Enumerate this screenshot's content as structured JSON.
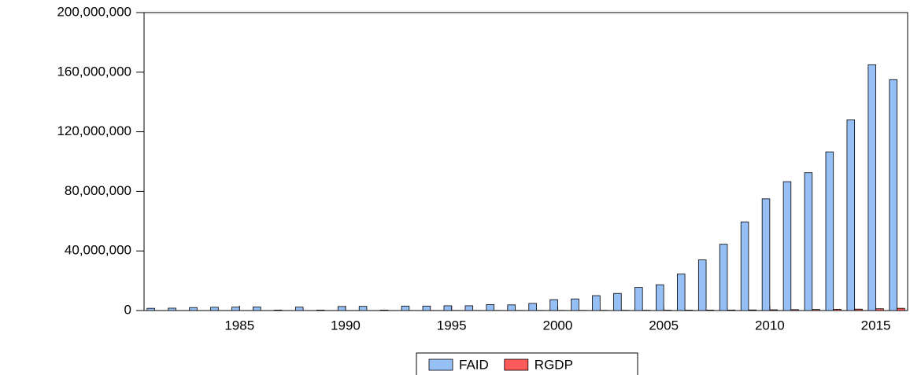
{
  "chart_data": {
    "type": "bar",
    "categories": [
      null,
      null,
      null,
      null,
      "1985",
      null,
      null,
      null,
      null,
      "1990",
      null,
      null,
      null,
      null,
      "1995",
      null,
      null,
      null,
      null,
      "2000",
      null,
      null,
      null,
      null,
      "2005",
      null,
      null,
      null,
      null,
      "2010",
      null,
      null,
      null,
      null,
      "2015",
      null
    ],
    "series": [
      {
        "name": "FAID",
        "color": "#96bff5",
        "values": [
          1500000.0,
          1600000.0,
          2000000.0,
          2200000.0,
          2300000.0,
          2400000.0,
          300000.0,
          2300000.0,
          300000.0,
          2700000.0,
          2800000.0,
          300000.0,
          3000000.0,
          3000000.0,
          3200000.0,
          3200000.0,
          4000000.0,
          3800000.0,
          4800000.0,
          7300000.0,
          7800000.0,
          10000000.0,
          11500000.0,
          15500000.0,
          17300000.0,
          24500000.0,
          34000000.0,
          44500000.0,
          59500000.0,
          75000000.0,
          86500000.0,
          92500000.0,
          106500000.0,
          128000000.0,
          165000000.0,
          155000000.0
        ]
      },
      {
        "name": "RGDP",
        "color": "#ff5a5a",
        "values": [
          50000.0,
          50000.0,
          50000.0,
          50000.0,
          50000.0,
          50000.0,
          50000.0,
          50000.0,
          50000.0,
          60000.0,
          60000.0,
          60000.0,
          70000.0,
          70000.0,
          80000.0,
          80000.0,
          90000.0,
          100000.0,
          100000.0,
          120000.0,
          130000.0,
          150000.0,
          170000.0,
          200000.0,
          230000.0,
          270000.0,
          300000.0,
          350000.0,
          400000.0,
          500000.0,
          600000.0,
          700000.0,
          800000.0,
          950000.0,
          1200000.0,
          1500000.0
        ]
      }
    ],
    "ylim": [
      0,
      200000000
    ],
    "yticks": [
      0,
      {
        "value": 40000000,
        "label": "40,000,000"
      },
      {
        "value": 80000000,
        "label": "80,000,000"
      },
      {
        "value": 120000000,
        "label": "120,000,000"
      },
      {
        "value": 160000000,
        "label": "160,000,000"
      },
      {
        "value": 200000000,
        "label": "200,000,000"
      }
    ],
    "grid": false,
    "legend": "bottom"
  }
}
